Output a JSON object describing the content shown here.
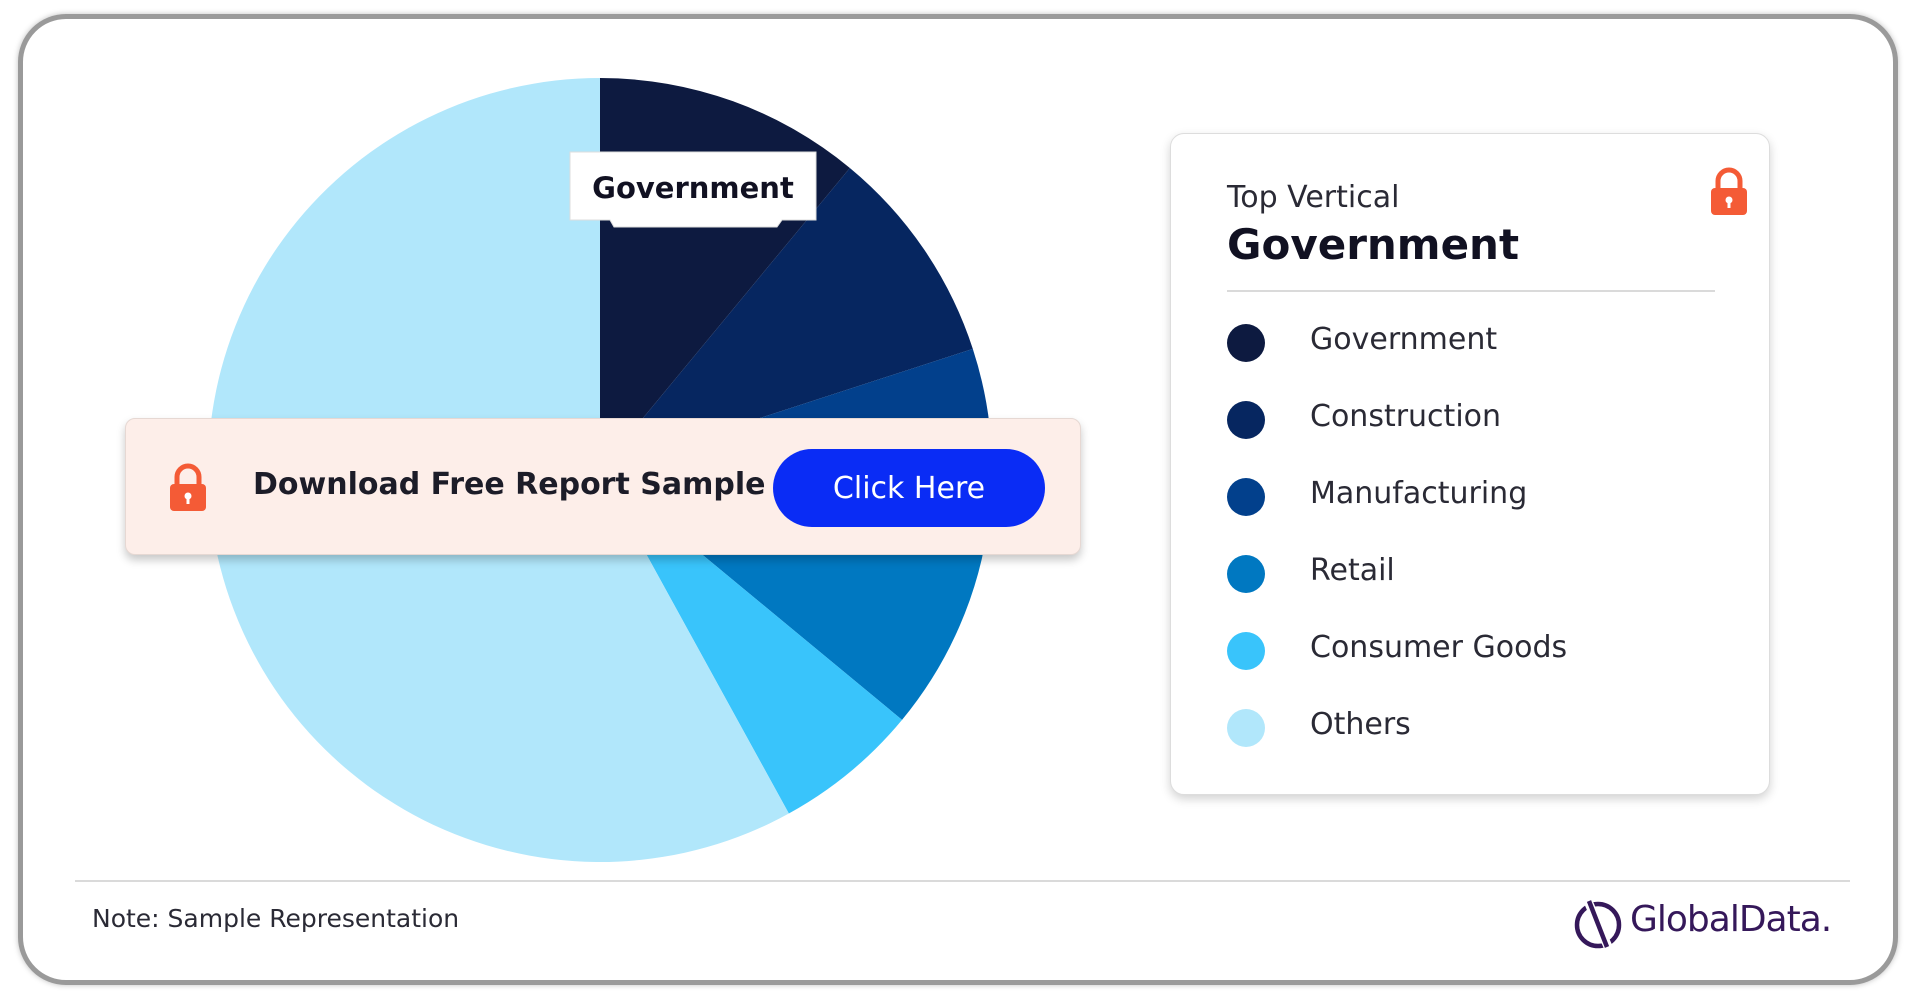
{
  "chart_data": {
    "type": "pie",
    "categories": [
      "Government",
      "Construction",
      "Manufacturing",
      "Retail",
      "Consumer Goods",
      "Others"
    ],
    "values": [
      11,
      9,
      7,
      9,
      6,
      58
    ],
    "colors": [
      "#0d1a40",
      "#062660",
      "#02408c",
      "#0078c1",
      "#39c4fb",
      "#b1e7fb"
    ],
    "highlight_label": "Government"
  },
  "banner": {
    "text": "Download Free Report Sample",
    "button_label": "Click Here",
    "lock_color": "#f45b36"
  },
  "legend": {
    "caption": "Top Vertical",
    "value": "Government",
    "lock_color": "#f45b36",
    "items": [
      {
        "label": "Government",
        "color": "#0d1a40"
      },
      {
        "label": "Construction",
        "color": "#062660"
      },
      {
        "label": "Manufacturing",
        "color": "#02408c"
      },
      {
        "label": "Retail",
        "color": "#0078c1"
      },
      {
        "label": "Consumer Goods",
        "color": "#39c4fb"
      },
      {
        "label": "Others",
        "color": "#b1e7fb"
      }
    ]
  },
  "footer": {
    "note": "Note: Sample Representation",
    "brand": "GlobalData."
  }
}
